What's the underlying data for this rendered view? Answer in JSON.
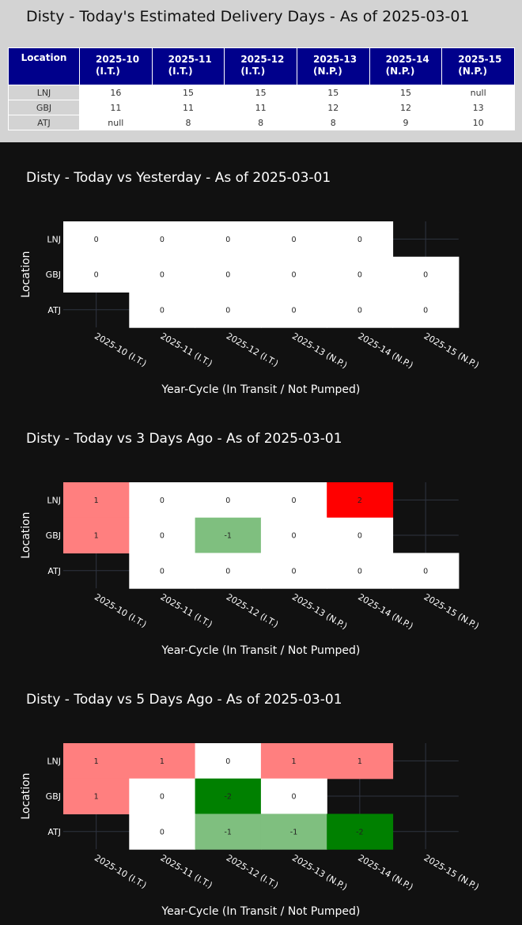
{
  "table": {
    "title": "Disty - Today's Estimated Delivery Days - As of 2025-03-01",
    "location_header": "Location",
    "columns": [
      {
        "l1": "2025-10",
        "l2": "(I.T.)"
      },
      {
        "l1": "2025-11",
        "l2": "(I.T.)"
      },
      {
        "l1": "2025-12",
        "l2": "(I.T.)"
      },
      {
        "l1": "2025-13",
        "l2": "(N.P.)"
      },
      {
        "l1": "2025-14",
        "l2": "(N.P.)"
      },
      {
        "l1": "2025-15",
        "l2": "(N.P.)"
      }
    ],
    "rows": [
      {
        "location": "LNJ",
        "values": [
          "16",
          "15",
          "15",
          "15",
          "15",
          "null"
        ]
      },
      {
        "location": "GBJ",
        "values": [
          "11",
          "11",
          "11",
          "12",
          "12",
          "13"
        ]
      },
      {
        "location": "ATJ",
        "values": [
          "null",
          "8",
          "8",
          "8",
          "9",
          "10"
        ]
      }
    ]
  },
  "colors": {
    "page_dark": "#111111",
    "header_bg": "#00008b",
    "panel_bg": "#d3d3d3",
    "zero": "#ffffff",
    "plus1": "#ff7f7f",
    "plus2": "#ff0000",
    "minus1": "#7fbf7f",
    "minus2": "#008000",
    "grid": "#2f3440"
  },
  "chart_data": [
    {
      "type": "heatmap",
      "title": "Disty - Today vs Yesterday - As of 2025-03-01",
      "xlabel": "Year-Cycle (In Transit / Not Pumped)",
      "ylabel": "Location",
      "x": [
        "2025-10 (I.T.)",
        "2025-11 (I.T.)",
        "2025-12 (I.T.)",
        "2025-13 (N.P.)",
        "2025-14 (N.P.)",
        "2025-15 (N.P.)"
      ],
      "y": [
        "LNJ",
        "GBJ",
        "ATJ"
      ],
      "z": [
        [
          0,
          0,
          0,
          0,
          0,
          null
        ],
        [
          0,
          0,
          0,
          0,
          0,
          0
        ],
        [
          null,
          0,
          0,
          0,
          0,
          0
        ]
      ]
    },
    {
      "type": "heatmap",
      "title": "Disty - Today vs 3 Days Ago - As of 2025-03-01",
      "xlabel": "Year-Cycle (In Transit / Not Pumped)",
      "ylabel": "Location",
      "x": [
        "2025-10 (I.T.)",
        "2025-11 (I.T.)",
        "2025-12 (I.T.)",
        "2025-13 (N.P.)",
        "2025-14 (N.P.)",
        "2025-15 (N.P.)"
      ],
      "y": [
        "LNJ",
        "GBJ",
        "ATJ"
      ],
      "z": [
        [
          1,
          0,
          0,
          0,
          2,
          null
        ],
        [
          1,
          0,
          -1,
          0,
          0,
          null
        ],
        [
          null,
          0,
          0,
          0,
          0,
          0
        ]
      ]
    },
    {
      "type": "heatmap",
      "title": "Disty - Today vs 5 Days Ago - As of 2025-03-01",
      "xlabel": "Year-Cycle (In Transit / Not Pumped)",
      "ylabel": "Location",
      "x": [
        "2025-10 (I.T.)",
        "2025-11 (I.T.)",
        "2025-12 (I.T.)",
        "2025-13 (N.P.)",
        "2025-14 (N.P.)",
        "2025-15 (N.P.)"
      ],
      "y": [
        "LNJ",
        "GBJ",
        "ATJ"
      ],
      "z": [
        [
          1,
          1,
          0,
          1,
          1,
          null
        ],
        [
          1,
          0,
          -2,
          0,
          null,
          null
        ],
        [
          null,
          0,
          -1,
          -1,
          -2,
          null
        ]
      ]
    }
  ]
}
